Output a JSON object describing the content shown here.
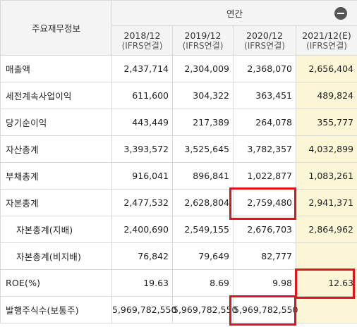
{
  "header": {
    "corner_label": "주요재무정보",
    "group_label": "연간",
    "collapse_icon": "minus-circle-icon",
    "columns": [
      {
        "period": "2018/12",
        "basis": "(IFRS연결)"
      },
      {
        "period": "2019/12",
        "basis": "(IFRS연결)"
      },
      {
        "period": "2020/12",
        "basis": "(IFRS연결)"
      },
      {
        "period": "2021/12(E)",
        "basis": "(IFRS연결)"
      }
    ]
  },
  "rows": [
    {
      "label": "매출액",
      "values": [
        "2,437,714",
        "2,304,009",
        "2,368,070",
        "2,656,404"
      ]
    },
    {
      "label": "세전계속사업이익",
      "values": [
        "611,600",
        "304,322",
        "363,451",
        "489,824"
      ]
    },
    {
      "label": "당기순이익",
      "values": [
        "443,449",
        "217,389",
        "264,078",
        "355,777"
      ]
    },
    {
      "label": "자산총계",
      "values": [
        "3,393,572",
        "3,525,645",
        "3,782,357",
        "4,032,899"
      ]
    },
    {
      "label": "부채총계",
      "values": [
        "916,041",
        "896,841",
        "1,022,877",
        "1,083,261"
      ]
    },
    {
      "label": "자본총계",
      "values": [
        "2,477,532",
        "2,628,804",
        "2,759,480",
        "2,941,371"
      ]
    },
    {
      "label": "자본총계(지배)",
      "values": [
        "2,400,690",
        "2,549,155",
        "2,676,703",
        "2,864,962"
      ]
    },
    {
      "label": "자본총계(비지배)",
      "values": [
        "76,842",
        "79,649",
        "82,777",
        ""
      ]
    },
    {
      "label": "ROE(%)",
      "values": [
        "19.63",
        "8.69",
        "9.98",
        "12.63"
      ]
    },
    {
      "label": "발행주식수(보통주)",
      "values": [
        "5,969,782,550",
        "5,969,782,550",
        "5,969,782,550",
        ""
      ]
    }
  ],
  "colors": {
    "estimate_column_bg": "#fbf6d6",
    "highlight_border": "#e0141c",
    "header_bg": "#f4f4f4"
  }
}
